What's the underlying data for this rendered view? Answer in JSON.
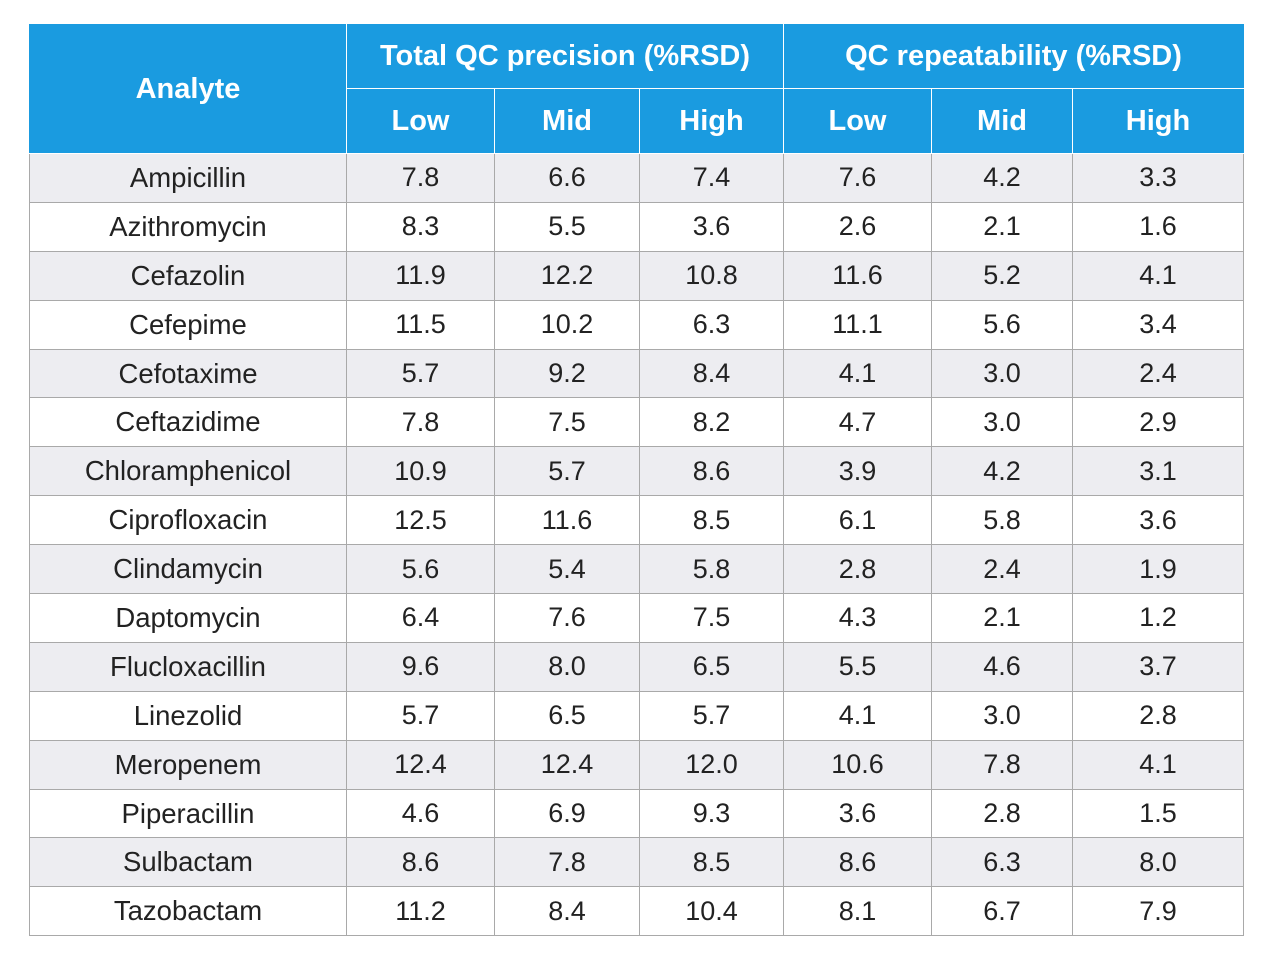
{
  "header": {
    "analyte": "Analyte",
    "group1": "Total QC precision (%RSD)",
    "group2": "QC repeatability (%RSD)",
    "sub": [
      "Low",
      "Mid",
      "High",
      "Low",
      "Mid",
      "High"
    ]
  },
  "rows": [
    {
      "analyte": "Ampicillin",
      "values": [
        "7.8",
        "6.6",
        "7.4",
        "7.6",
        "4.2",
        "3.3"
      ]
    },
    {
      "analyte": "Azithromycin",
      "values": [
        "8.3",
        "5.5",
        "3.6",
        "2.6",
        "2.1",
        "1.6"
      ]
    },
    {
      "analyte": "Cefazolin",
      "values": [
        "11.9",
        "12.2",
        "10.8",
        "11.6",
        "5.2",
        "4.1"
      ]
    },
    {
      "analyte": "Cefepime",
      "values": [
        "11.5",
        "10.2",
        "6.3",
        "11.1",
        "5.6",
        "3.4"
      ]
    },
    {
      "analyte": "Cefotaxime",
      "values": [
        "5.7",
        "9.2",
        "8.4",
        "4.1",
        "3.0",
        "2.4"
      ]
    },
    {
      "analyte": "Ceftazidime",
      "values": [
        "7.8",
        "7.5",
        "8.2",
        "4.7",
        "3.0",
        "2.9"
      ]
    },
    {
      "analyte": "Chloramphenicol",
      "values": [
        "10.9",
        "5.7",
        "8.6",
        "3.9",
        "4.2",
        "3.1"
      ]
    },
    {
      "analyte": "Ciprofloxacin",
      "values": [
        "12.5",
        "11.6",
        "8.5",
        "6.1",
        "5.8",
        "3.6"
      ]
    },
    {
      "analyte": "Clindamycin",
      "values": [
        "5.6",
        "5.4",
        "5.8",
        "2.8",
        "2.4",
        "1.9"
      ]
    },
    {
      "analyte": "Daptomycin",
      "values": [
        "6.4",
        "7.6",
        "7.5",
        "4.3",
        "2.1",
        "1.2"
      ]
    },
    {
      "analyte": "Flucloxacillin",
      "values": [
        "9.6",
        "8.0",
        "6.5",
        "5.5",
        "4.6",
        "3.7"
      ]
    },
    {
      "analyte": "Linezolid",
      "values": [
        "5.7",
        "6.5",
        "5.7",
        "4.1",
        "3.0",
        "2.8"
      ]
    },
    {
      "analyte": "Meropenem",
      "values": [
        "12.4",
        "12.4",
        "12.0",
        "10.6",
        "7.8",
        "4.1"
      ]
    },
    {
      "analyte": "Piperacillin",
      "values": [
        "4.6",
        "6.9",
        "9.3",
        "3.6",
        "2.8",
        "1.5"
      ]
    },
    {
      "analyte": "Sulbactam",
      "values": [
        "8.6",
        "7.8",
        "8.5",
        "8.6",
        "6.3",
        "8.0"
      ]
    },
    {
      "analyte": "Tazobactam",
      "values": [
        "11.2",
        "8.4",
        "10.4",
        "8.1",
        "6.7",
        "7.9"
      ]
    }
  ]
}
